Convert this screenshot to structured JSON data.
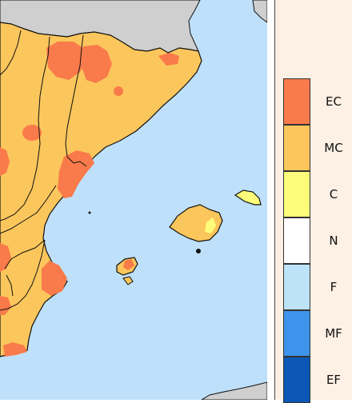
{
  "map": {
    "colors": {
      "sea": "#bfe0fa",
      "foreign_land": "#cfcfcf",
      "border": "#111111"
    }
  },
  "legend": {
    "items": [
      {
        "label": "EC",
        "color": "#f97a4a"
      },
      {
        "label": "MC",
        "color": "#fbc65c"
      },
      {
        "label": "C",
        "color": "#fcfc7a"
      },
      {
        "label": "N",
        "color": "#ffffff"
      },
      {
        "label": "F",
        "color": "#bde3f8"
      },
      {
        "label": "MF",
        "color": "#3e94ea"
      },
      {
        "label": "EF",
        "color": "#0a57b5"
      }
    ]
  }
}
